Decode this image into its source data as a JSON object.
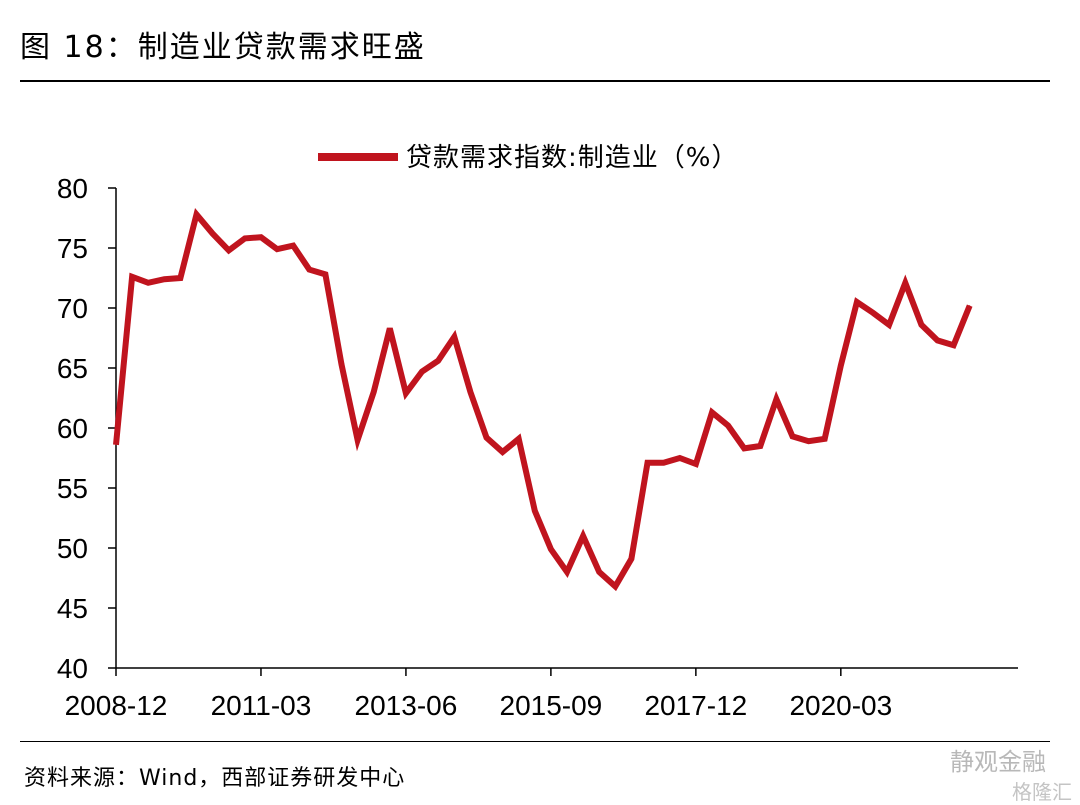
{
  "figure": {
    "title": "图 18：制造业贷款需求旺盛",
    "source": "资料来源：Wind，西部证券研发中心",
    "watermark": "静观金融",
    "watermark2": "格隆汇"
  },
  "chart_data": {
    "type": "line",
    "title": "",
    "xlabel": "",
    "ylabel": "",
    "ylim": [
      40,
      80
    ],
    "yticks": [
      40,
      45,
      50,
      55,
      60,
      65,
      70,
      75,
      80
    ],
    "xtick_labels": [
      "2008-12",
      "2011-03",
      "2013-06",
      "2015-09",
      "2017-12",
      "2020-03"
    ],
    "legend_position": "top-center",
    "grid": false,
    "series": [
      {
        "name": "贷款需求指数:制造业（%）",
        "color": "#c0141e",
        "x": [
          "2008-12",
          "2009-03",
          "2009-06",
          "2009-09",
          "2009-12",
          "2010-03",
          "2010-06",
          "2010-09",
          "2010-12",
          "2011-03",
          "2011-06",
          "2011-09",
          "2011-12",
          "2012-03",
          "2012-06",
          "2012-09",
          "2012-12",
          "2013-03",
          "2013-06",
          "2013-09",
          "2013-12",
          "2014-03",
          "2014-06",
          "2014-09",
          "2014-12",
          "2015-03",
          "2015-06",
          "2015-09",
          "2015-12",
          "2016-03",
          "2016-06",
          "2016-09",
          "2016-12",
          "2017-03",
          "2017-06",
          "2017-09",
          "2017-12",
          "2018-03",
          "2018-06",
          "2018-09",
          "2018-12",
          "2019-03",
          "2019-06",
          "2019-09",
          "2019-12",
          "2020-03",
          "2020-06",
          "2020-09",
          "2020-12",
          "2021-03",
          "2021-06",
          "2021-09",
          "2021-12",
          "2022-03",
          "2022-06",
          "2022-09",
          "2022-12"
        ],
        "values": [
          58.6,
          72.6,
          72.1,
          72.4,
          72.5,
          77.8,
          76.2,
          74.8,
          75.8,
          75.9,
          74.9,
          75.2,
          73.2,
          72.8,
          65.3,
          59.0,
          63.0,
          68.3,
          62.9,
          64.7,
          65.6,
          67.6,
          63.0,
          59.2,
          58.0,
          59.1,
          53.1,
          49.9,
          48.0,
          51.0,
          48.0,
          46.8,
          49.1,
          57.1,
          57.1,
          57.5,
          57.0,
          61.3,
          60.2,
          58.3,
          58.5,
          62.4,
          59.3,
          58.9,
          59.1,
          65.2,
          70.5,
          69.6,
          68.6,
          72.1,
          68.6,
          67.3,
          66.9,
          70.2,
          null,
          null,
          null
        ]
      }
    ]
  }
}
